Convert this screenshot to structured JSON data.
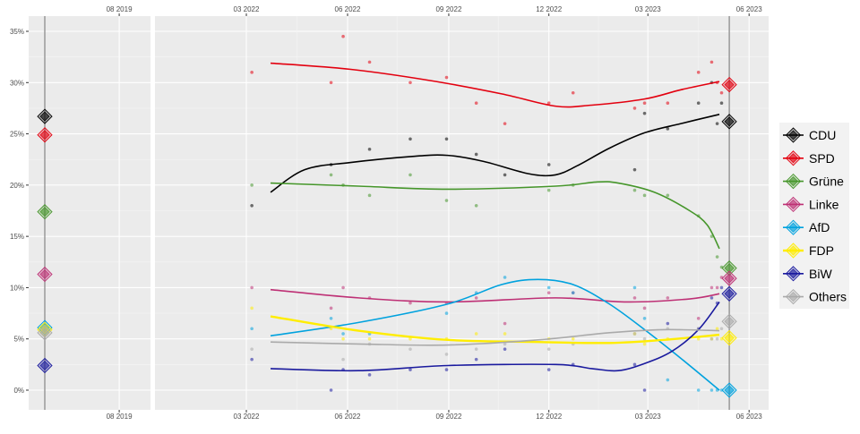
{
  "chart_data": {
    "type": "line",
    "title": "",
    "xlabel": "",
    "ylabel": "",
    "ylim": [
      0,
      35
    ],
    "y_ticks": [
      "0%",
      "5%",
      "10%",
      "15%",
      "20%",
      "25%",
      "30%",
      "35%"
    ],
    "y_tick_values": [
      0,
      5,
      10,
      15,
      20,
      25,
      30,
      35
    ],
    "x_ticks_left": [
      {
        "label": "08 2019",
        "date": "2019-08-01"
      }
    ],
    "x_ticks_right": [
      {
        "label": "03 2022",
        "date": "2022-03-01"
      },
      {
        "label": "06 2022",
        "date": "2022-06-01"
      },
      {
        "label": "09 2022",
        "date": "2022-09-01"
      },
      {
        "label": "12 2022",
        "date": "2022-12-01"
      },
      {
        "label": "03 2023",
        "date": "2023-03-01"
      },
      {
        "label": "06 2023",
        "date": "2023-06-01"
      }
    ],
    "election_dates": [
      "2019-05-26",
      "2023-05-14"
    ],
    "legend_position": "right",
    "grid": true,
    "poll_dates": [
      "2022-03-06",
      "2022-05-17",
      "2022-05-28",
      "2022-06-21",
      "2022-07-28",
      "2022-08-30",
      "2022-09-26",
      "2022-10-22",
      "2022-12-01",
      "2022-12-23",
      "2023-02-17",
      "2023-02-26",
      "2023-03-19",
      "2023-04-16",
      "2023-04-28",
      "2023-05-03",
      "2023-05-07"
    ],
    "series": [
      {
        "name": "CDU",
        "color": "#000000",
        "election_2019": 26.7,
        "election_2023": 26.2,
        "polls": [
          18,
          22,
          null,
          23.5,
          24.5,
          24.5,
          23,
          21,
          22,
          null,
          21.5,
          27,
          25.5,
          28,
          30,
          26,
          28
        ],
        "trend": [
          [
            "2022-03-23",
            19.3
          ],
          [
            "2022-04-23",
            21.5
          ],
          [
            "2022-06-03",
            22.2
          ],
          [
            "2022-07-30",
            22.8
          ],
          [
            "2022-08-31",
            22.9
          ],
          [
            "2022-10-03",
            22.3
          ],
          [
            "2022-11-13",
            21.1
          ],
          [
            "2022-12-07",
            21.0
          ],
          [
            "2022-12-27",
            21.9
          ],
          [
            "2023-01-25",
            23.6
          ],
          [
            "2023-02-26",
            25.1
          ],
          [
            "2023-03-31",
            26.0
          ],
          [
            "2023-05-05",
            26.9
          ]
        ]
      },
      {
        "name": "SPD",
        "color": "#E3000F",
        "election_2019": 24.9,
        "election_2023": 29.8,
        "polls": [
          31,
          30,
          34.5,
          32,
          30,
          30.5,
          28,
          26,
          28,
          29,
          27.5,
          28,
          28,
          31,
          32,
          30,
          29
        ],
        "trend": [
          [
            "2022-03-23",
            31.9
          ],
          [
            "2022-06-03",
            31.3
          ],
          [
            "2022-08-15",
            30.2
          ],
          [
            "2022-10-19",
            28.9
          ],
          [
            "2022-12-07",
            27.7
          ],
          [
            "2023-01-09",
            27.8
          ],
          [
            "2023-02-26",
            28.4
          ],
          [
            "2023-03-31",
            29.3
          ],
          [
            "2023-05-05",
            30.1
          ]
        ]
      },
      {
        "name": "Grüne",
        "color": "#46962B",
        "election_2019": 17.4,
        "election_2023": 11.9,
        "polls": [
          20,
          21,
          20,
          19,
          21,
          18.5,
          18,
          null,
          19.5,
          20,
          19.5,
          19,
          19,
          17,
          15,
          13,
          12
        ],
        "trend": [
          [
            "2022-03-23",
            20.2
          ],
          [
            "2022-06-11",
            19.9
          ],
          [
            "2022-08-31",
            19.6
          ],
          [
            "2022-12-07",
            19.9
          ],
          [
            "2023-01-13",
            20.3
          ],
          [
            "2023-02-02",
            20.2
          ],
          [
            "2023-03-07",
            19.3
          ],
          [
            "2023-04-08",
            17.5
          ],
          [
            "2023-04-24",
            16.1
          ],
          [
            "2023-05-05",
            13.8
          ]
        ]
      },
      {
        "name": "Linke",
        "color": "#BE3075",
        "election_2019": 11.3,
        "election_2023": 10.9,
        "polls": [
          10,
          8,
          10,
          9,
          8.5,
          8.5,
          9,
          6.5,
          9.5,
          9.5,
          9,
          8,
          9,
          7,
          10,
          10,
          11
        ],
        "trend": [
          [
            "2022-03-23",
            9.8
          ],
          [
            "2022-06-11",
            9.0
          ],
          [
            "2022-08-31",
            8.6
          ],
          [
            "2022-12-07",
            9.0
          ],
          [
            "2023-02-10",
            8.6
          ],
          [
            "2023-04-08",
            8.9
          ],
          [
            "2023-05-05",
            9.4
          ]
        ]
      },
      {
        "name": "AfD",
        "color": "#00A2DE",
        "election_2019": 6.1,
        "election_2023": 0,
        "polls": [
          6,
          7,
          5.5,
          5.5,
          null,
          7.5,
          9.5,
          11,
          10,
          9.5,
          10,
          7,
          1,
          0,
          0,
          0,
          0
        ],
        "trend": [
          [
            "2022-03-23",
            5.3
          ],
          [
            "2022-06-11",
            6.6
          ],
          [
            "2022-08-31",
            8.4
          ],
          [
            "2022-10-19",
            10.3
          ],
          [
            "2022-11-21",
            10.8
          ],
          [
            "2022-12-23",
            10.3
          ],
          [
            "2023-01-25",
            8.4
          ],
          [
            "2023-02-26",
            5.9
          ],
          [
            "2023-03-31",
            3.1
          ],
          [
            "2023-05-05",
            0
          ]
        ]
      },
      {
        "name": "FDP",
        "color": "#FFED00",
        "election_2019": 5.9,
        "election_2023": 5.1,
        "polls": [
          8,
          6,
          5,
          5,
          5,
          5,
          5.5,
          5.5,
          5,
          5,
          5.5,
          4.5,
          5,
          5,
          5,
          6,
          5
        ],
        "trend": [
          [
            "2022-03-23",
            7.2
          ],
          [
            "2022-06-11",
            5.8
          ],
          [
            "2022-08-31",
            4.9
          ],
          [
            "2022-11-21",
            4.7
          ],
          [
            "2023-01-25",
            4.6
          ],
          [
            "2023-03-15",
            4.9
          ],
          [
            "2023-05-05",
            5.4
          ]
        ]
      },
      {
        "name": "BiW",
        "color": "#1A1A9E",
        "election_2019": 2.4,
        "election_2023": 9.4,
        "polls": [
          3,
          0,
          2,
          1.5,
          2,
          2,
          3,
          4,
          2,
          2.5,
          2.5,
          0,
          6.5,
          6,
          9,
          8.5,
          10
        ],
        "trend": [
          [
            "2022-03-23",
            2.1
          ],
          [
            "2022-06-11",
            1.9
          ],
          [
            "2022-08-31",
            2.4
          ],
          [
            "2022-12-07",
            2.5
          ],
          [
            "2023-01-09",
            2.1
          ],
          [
            "2023-02-02",
            1.9
          ],
          [
            "2023-02-26",
            2.6
          ],
          [
            "2023-03-23",
            3.8
          ],
          [
            "2023-04-16",
            5.9
          ],
          [
            "2023-05-05",
            8.6
          ]
        ]
      },
      {
        "name": "Others",
        "color": "#AAAAAA",
        "election_2019": 5.6,
        "election_2023": 6.7,
        "polls": [
          4,
          null,
          3,
          4.5,
          4,
          3.5,
          4,
          4.5,
          4,
          4.5,
          5.5,
          5,
          6,
          6,
          5,
          5,
          6
        ],
        "trend": [
          [
            "2022-03-23",
            4.7
          ],
          [
            "2022-06-11",
            4.5
          ],
          [
            "2022-08-31",
            4.4
          ],
          [
            "2022-11-21",
            4.9
          ],
          [
            "2023-01-25",
            5.6
          ],
          [
            "2023-03-15",
            5.9
          ],
          [
            "2023-05-05",
            5.8
          ]
        ]
      }
    ]
  }
}
